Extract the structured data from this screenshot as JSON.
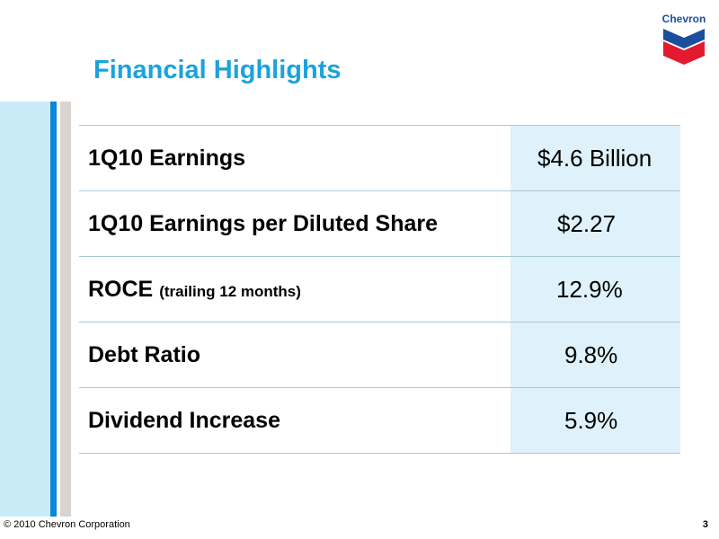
{
  "logo": {
    "text": "Chevron"
  },
  "title": "Financial Highlights",
  "rows": [
    {
      "label": "1Q10 Earnings",
      "sub": "",
      "value": "$4.6 Billion"
    },
    {
      "label": "1Q10 Earnings per Diluted Share",
      "sub": "",
      "value": "$2.27"
    },
    {
      "label": "ROCE",
      "sub": "(trailing 12 months)",
      "value": "12.9%"
    },
    {
      "label": "Debt Ratio",
      "sub": "",
      "value": "9.8%"
    },
    {
      "label": "Dividend Increase",
      "sub": "",
      "value": "5.9%"
    }
  ],
  "footer": {
    "copyright": "© 2010 Chevron Corporation",
    "page_number": "3"
  },
  "colors": {
    "title": "#1aa3dc",
    "accent_blue": "#0a87d6",
    "value_bg": "#dff2fb",
    "logo_blue": "#1b4f9c",
    "logo_red": "#e3192f"
  }
}
